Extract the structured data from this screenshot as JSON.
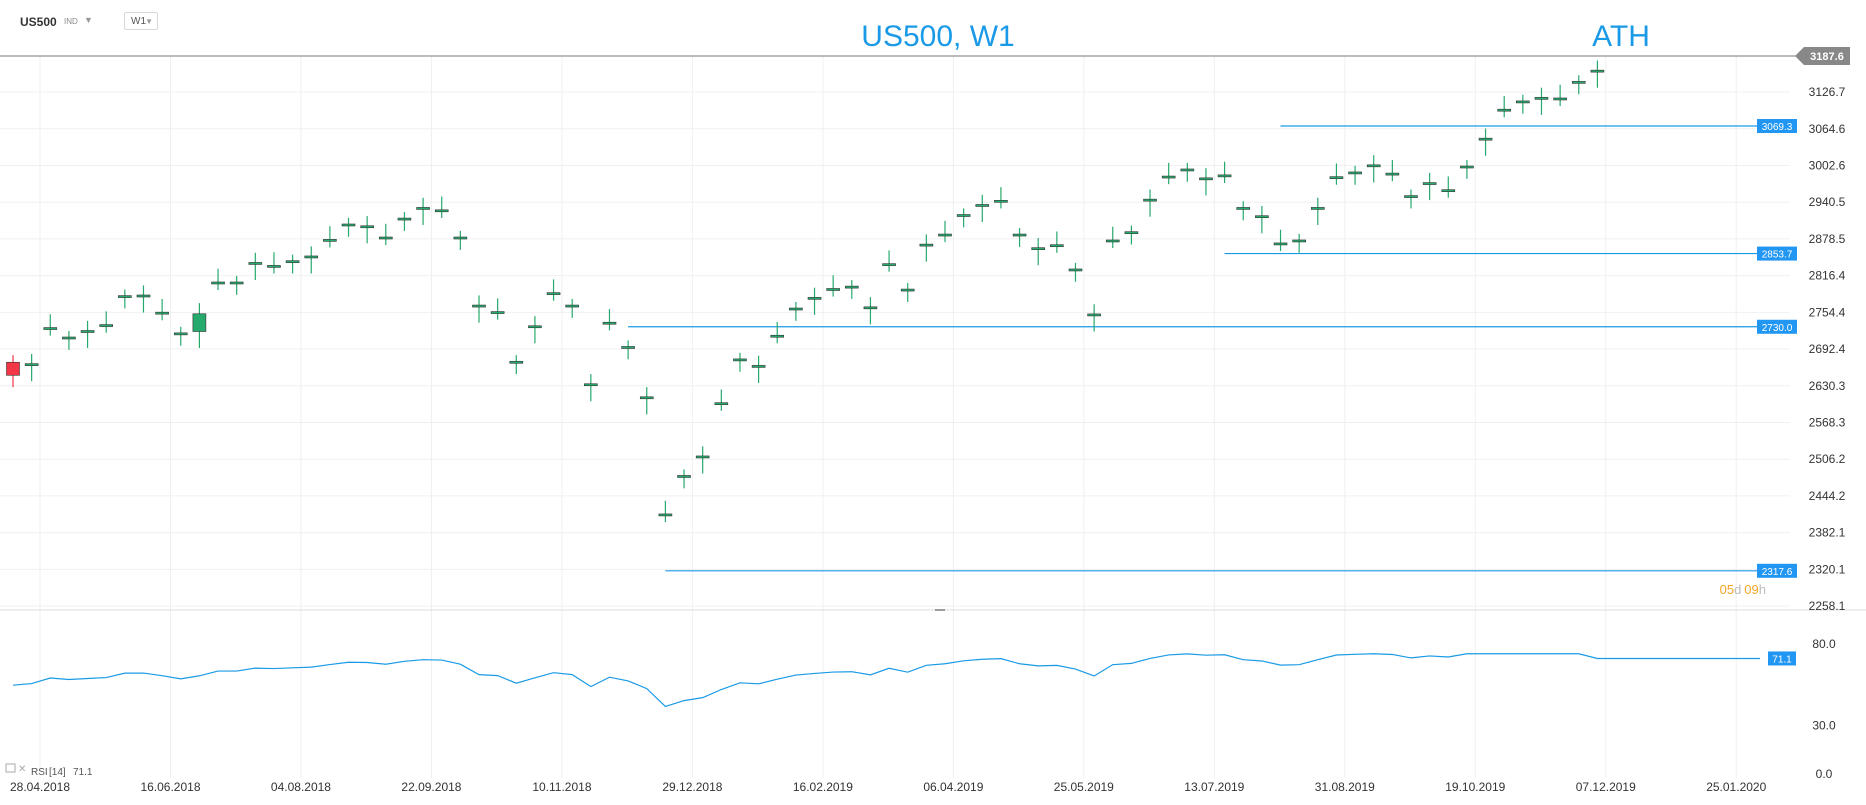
{
  "toolbar": {
    "symbol": "US500",
    "type": "IND",
    "timeframe": "W1"
  },
  "chart_title": "US500, W1",
  "ath_label": "ATH",
  "current_price": "3187.6",
  "countdown": {
    "days": "05",
    "d": "d",
    "hours": "09",
    "h": "h"
  },
  "price_axis": [
    "3187.6",
    "3126.7",
    "3064.6",
    "3002.6",
    "2940.5",
    "2878.5",
    "2816.4",
    "2754.4",
    "2692.4",
    "2630.3",
    "2568.3",
    "2506.2",
    "2444.2",
    "2382.1",
    "2320.1",
    "2258.1"
  ],
  "levels": [
    "3069.3",
    "2853.7",
    "2730.0",
    "2317.6"
  ],
  "rsi": {
    "label": "RSI",
    "period": "[14]",
    "value": "71.1",
    "axis": [
      "80.0",
      "30.0",
      "0.0"
    ]
  },
  "date_axis": [
    "28.04.2018",
    "16.06.2018",
    "04.08.2018",
    "22.09.2018",
    "10.11.2018",
    "29.12.2018",
    "16.02.2019",
    "06.04.2019",
    "25.05.2019",
    "13.07.2019",
    "31.08.2019",
    "19.10.2019",
    "07.12.2019",
    "25.01.2020"
  ],
  "colors": {
    "up": "#26a96c",
    "down": "#f23645",
    "accent": "#1a9ae6",
    "label_bg": "#2196f3",
    "grid": "#f0f0f0",
    "countdown": "#f5a623"
  },
  "chart_data": {
    "type": "candlestick",
    "title": "US500, W1",
    "timeframe": "W1",
    "x": [
      "22.04.2018",
      "29.04.2018",
      "06.05.2018",
      "13.05.2018",
      "20.05.2018",
      "27.05.2018",
      "03.06.2018",
      "10.06.2018",
      "17.06.2018",
      "24.06.2018",
      "01.07.2018",
      "08.07.2018",
      "15.07.2018",
      "22.07.2018",
      "29.07.2018",
      "05.08.2018",
      "12.08.2018",
      "19.08.2018",
      "26.08.2018",
      "02.09.2018",
      "09.09.2018",
      "16.09.2018",
      "23.09.2018",
      "30.09.2018",
      "07.10.2018",
      "14.10.2018",
      "21.10.2018",
      "28.10.2018",
      "04.11.2018",
      "11.11.2018",
      "18.11.2018",
      "25.11.2018",
      "02.12.2018",
      "09.12.2018",
      "16.12.2018",
      "23.12.2018",
      "30.12.2018",
      "06.01.2019",
      "13.01.2019",
      "20.01.2019",
      "27.01.2019",
      "03.02.2019",
      "10.02.2019",
      "17.02.2019",
      "24.02.2019",
      "03.03.2019",
      "10.03.2019",
      "17.03.2019",
      "24.03.2019",
      "31.03.2019",
      "07.04.2019",
      "14.04.2019",
      "21.04.2019",
      "28.04.2019",
      "05.05.2019",
      "12.05.2019",
      "19.05.2019",
      "26.05.2019",
      "02.06.2019",
      "09.06.2019",
      "16.06.2019",
      "23.06.2019",
      "30.06.2019",
      "07.07.2019",
      "14.07.2019",
      "21.07.2019",
      "28.07.2019",
      "04.08.2019",
      "11.08.2019",
      "18.08.2019",
      "25.08.2019",
      "01.09.2019",
      "08.09.2019",
      "15.09.2019",
      "22.09.2019",
      "29.09.2019",
      "06.10.2019",
      "13.10.2019",
      "20.10.2019",
      "27.10.2019",
      "03.11.2019",
      "10.11.2019",
      "17.11.2019",
      "24.11.2019",
      "01.12.2019",
      "08.12.2019"
    ],
    "open": [
      2670,
      2666,
      2727,
      2711,
      2722,
      2732,
      2781,
      2782,
      2753,
      2718,
      2722,
      2804,
      2804,
      2837,
      2832,
      2840,
      2848,
      2876,
      2902,
      2899,
      2880,
      2912,
      2930,
      2926,
      2880,
      2765,
      2754,
      2670,
      2730,
      2786,
      2765,
      2632,
      2736,
      2695,
      2610,
      2412,
      2477,
      2510,
      2600,
      2674,
      2663,
      2714,
      2760,
      2778,
      2793,
      2797,
      2762,
      2835,
      2792,
      2868,
      2885,
      2918,
      2935,
      2942,
      2885,
      2862,
      2867,
      2826,
      2750,
      2875,
      2889,
      2944,
      2983,
      2995,
      2980,
      2985,
      2930,
      2916,
      2870,
      2875,
      2930,
      2982,
      2990,
      3002,
      2988,
      2950,
      2972,
      2960,
      3000,
      3047,
      3096,
      3110,
      3116,
      3115,
      3143,
      3162
    ],
    "close": [
      2648,
      2666,
      2727,
      2711,
      2722,
      2732,
      2781,
      2782,
      2753,
      2718,
      2752,
      2804,
      2804,
      2837,
      2832,
      2840,
      2848,
      2876,
      2902,
      2899,
      2880,
      2912,
      2930,
      2926,
      2880,
      2765,
      2754,
      2670,
      2730,
      2786,
      2765,
      2632,
      2736,
      2695,
      2610,
      2412,
      2477,
      2510,
      2600,
      2674,
      2663,
      2714,
      2760,
      2778,
      2793,
      2797,
      2762,
      2835,
      2792,
      2868,
      2885,
      2918,
      2935,
      2942,
      2885,
      2862,
      2867,
      2826,
      2750,
      2875,
      2889,
      2944,
      2983,
      2995,
      2980,
      2985,
      2930,
      2916,
      2870,
      2875,
      2930,
      2982,
      2990,
      3002,
      2988,
      2950,
      2972,
      2960,
      3000,
      3047,
      3096,
      3110,
      3116,
      3115,
      3143,
      3162
    ]
  }
}
